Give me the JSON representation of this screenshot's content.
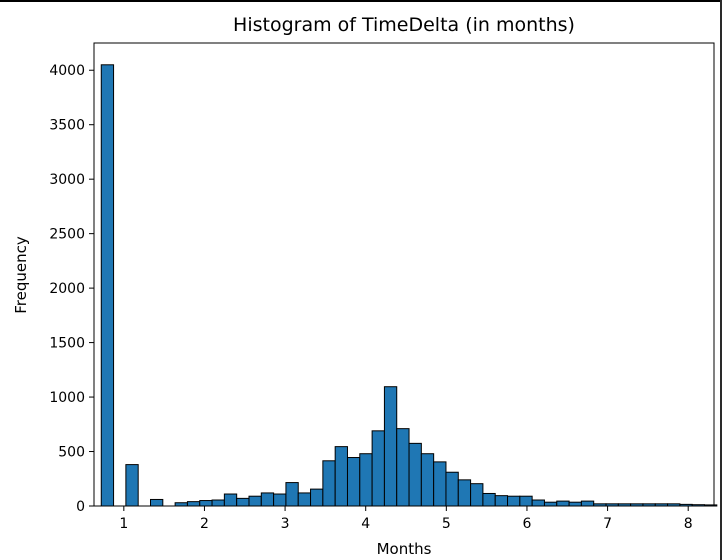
{
  "chart_data": {
    "type": "bar",
    "title": "Histogram of TimeDelta (in months)",
    "xlabel": "Months",
    "ylabel": "Frequency",
    "xlim": [
      0.63,
      8.32
    ],
    "ylim": [
      0,
      4250
    ],
    "xticks": [
      1,
      2,
      3,
      4,
      5,
      6,
      7,
      8
    ],
    "yticks": [
      0,
      500,
      1000,
      1500,
      2000,
      2500,
      3000,
      3500,
      4000
    ],
    "bin_start": 0.72,
    "bin_width": 0.1527,
    "values": [
      4050,
      0,
      380,
      0,
      60,
      0,
      30,
      40,
      50,
      55,
      110,
      70,
      90,
      120,
      110,
      215,
      120,
      155,
      415,
      545,
      445,
      480,
      690,
      1095,
      710,
      575,
      480,
      405,
      310,
      240,
      205,
      115,
      95,
      90,
      90,
      55,
      35,
      45,
      35,
      45,
      20,
      20,
      20,
      20,
      20,
      20,
      20,
      15,
      12,
      10
    ],
    "bar_color": "#1f77b4",
    "edge_color": "#000000",
    "grid": false,
    "legend": false
  }
}
